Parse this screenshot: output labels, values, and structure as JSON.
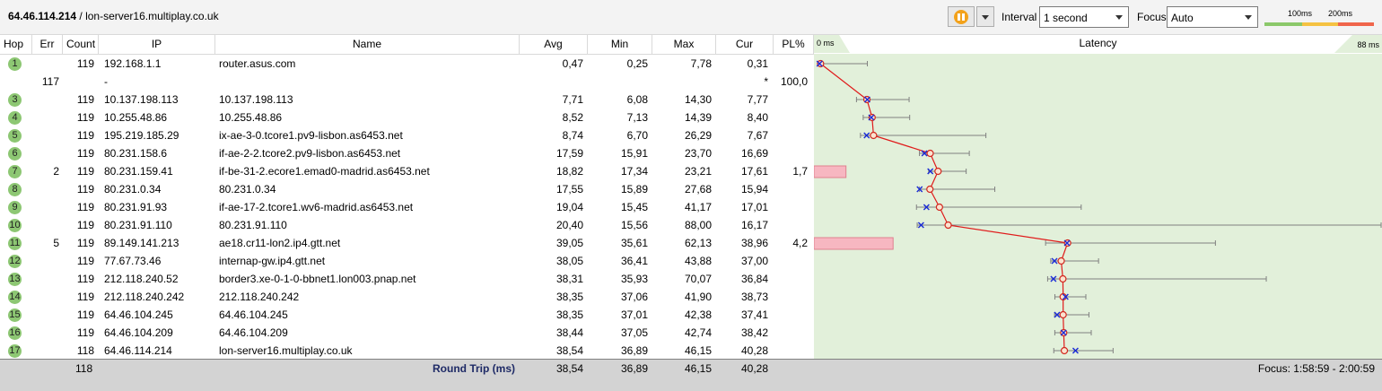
{
  "toolbar": {
    "target_ip": "64.46.114.214",
    "target_host": " / lon-server16.multiplay.co.uk",
    "interval_label": "Interval",
    "interval_value": "1 second",
    "focus_label": "Focus",
    "focus_value": "Auto",
    "scale_100": "100ms",
    "scale_200": "200ms",
    "colors": {
      "good": "#8bc86a",
      "warn": "#f5c242",
      "bad": "#f0654b",
      "pause": "#f3a21b"
    }
  },
  "columns": [
    "Hop",
    "Err",
    "Count",
    "IP",
    "Name",
    "Avg",
    "Min",
    "Max",
    "Cur",
    "PL%"
  ],
  "latency_header": {
    "min": "0 ms",
    "title": "Latency",
    "max": "88 ms"
  },
  "rows": [
    {
      "hop": "1",
      "err": "",
      "count": "119",
      "ip": "192.168.1.1",
      "name": "router.asus.com",
      "avg": "0,47",
      "min": "0,25",
      "max": "7,78",
      "cur": "0,31",
      "pl": ""
    },
    {
      "hop": "",
      "err": "117",
      "count": "",
      "ip": "-",
      "name": "",
      "avg": "",
      "min": "",
      "max": "",
      "cur": "*",
      "pl": "100,0"
    },
    {
      "hop": "3",
      "err": "",
      "count": "119",
      "ip": "10.137.198.113",
      "name": "10.137.198.113",
      "avg": "7,71",
      "min": "6,08",
      "max": "14,30",
      "cur": "7,77",
      "pl": ""
    },
    {
      "hop": "4",
      "err": "",
      "count": "119",
      "ip": "10.255.48.86",
      "name": "10.255.48.86",
      "avg": "8,52",
      "min": "7,13",
      "max": "14,39",
      "cur": "8,40",
      "pl": ""
    },
    {
      "hop": "5",
      "err": "",
      "count": "119",
      "ip": "195.219.185.29",
      "name": "ix-ae-3-0.tcore1.pv9-lisbon.as6453.net",
      "avg": "8,74",
      "min": "6,70",
      "max": "26,29",
      "cur": "7,67",
      "pl": ""
    },
    {
      "hop": "6",
      "err": "",
      "count": "119",
      "ip": "80.231.158.6",
      "name": "if-ae-2-2.tcore2.pv9-lisbon.as6453.net",
      "avg": "17,59",
      "min": "15,91",
      "max": "23,70",
      "cur": "16,69",
      "pl": ""
    },
    {
      "hop": "7",
      "err": "2",
      "count": "119",
      "ip": "80.231.159.41",
      "name": "if-be-31-2.ecore1.emad0-madrid.as6453.net",
      "avg": "18,82",
      "min": "17,34",
      "max": "23,21",
      "cur": "17,61",
      "pl": "1,7"
    },
    {
      "hop": "8",
      "err": "",
      "count": "119",
      "ip": "80.231.0.34",
      "name": "80.231.0.34",
      "avg": "17,55",
      "min": "15,89",
      "max": "27,68",
      "cur": "15,94",
      "pl": ""
    },
    {
      "hop": "9",
      "err": "",
      "count": "119",
      "ip": "80.231.91.93",
      "name": "if-ae-17-2.tcore1.wv6-madrid.as6453.net",
      "avg": "19,04",
      "min": "15,45",
      "max": "41,17",
      "cur": "17,01",
      "pl": ""
    },
    {
      "hop": "10",
      "err": "",
      "count": "119",
      "ip": "80.231.91.110",
      "name": "80.231.91.110",
      "avg": "20,40",
      "min": "15,56",
      "max": "88,00",
      "cur": "16,17",
      "pl": ""
    },
    {
      "hop": "11",
      "err": "5",
      "count": "119",
      "ip": "89.149.141.213",
      "name": "ae18.cr11-lon2.ip4.gtt.net",
      "avg": "39,05",
      "min": "35,61",
      "max": "62,13",
      "cur": "38,96",
      "pl": "4,2"
    },
    {
      "hop": "12",
      "err": "",
      "count": "119",
      "ip": "77.67.73.46",
      "name": "internap-gw.ip4.gtt.net",
      "avg": "38,05",
      "min": "36,41",
      "max": "43,88",
      "cur": "37,00",
      "pl": ""
    },
    {
      "hop": "13",
      "err": "",
      "count": "119",
      "ip": "212.118.240.52",
      "name": "border3.xe-0-1-0-bbnet1.lon003.pnap.net",
      "avg": "38,31",
      "min": "35,93",
      "max": "70,07",
      "cur": "36,84",
      "pl": ""
    },
    {
      "hop": "14",
      "err": "",
      "count": "119",
      "ip": "212.118.240.242",
      "name": "212.118.240.242",
      "avg": "38,35",
      "min": "37,06",
      "max": "41,90",
      "cur": "38,73",
      "pl": ""
    },
    {
      "hop": "15",
      "err": "",
      "count": "119",
      "ip": "64.46.104.245",
      "name": "64.46.104.245",
      "avg": "38,35",
      "min": "37,01",
      "max": "42,38",
      "cur": "37,41",
      "pl": ""
    },
    {
      "hop": "16",
      "err": "",
      "count": "119",
      "ip": "64.46.104.209",
      "name": "64.46.104.209",
      "avg": "38,44",
      "min": "37,05",
      "max": "42,74",
      "cur": "38,42",
      "pl": ""
    },
    {
      "hop": "17",
      "err": "",
      "count": "118",
      "ip": "64.46.114.214",
      "name": "lon-server16.multiplay.co.uk",
      "avg": "38,54",
      "min": "36,89",
      "max": "46,15",
      "cur": "40,28",
      "pl": ""
    }
  ],
  "footer": {
    "count": "118",
    "label": "Round Trip (ms)",
    "avg": "38,54",
    "min": "36,89",
    "max": "46,15",
    "cur": "40,28",
    "focus": "Focus: 1:58:59 - 2:00:59"
  }
}
